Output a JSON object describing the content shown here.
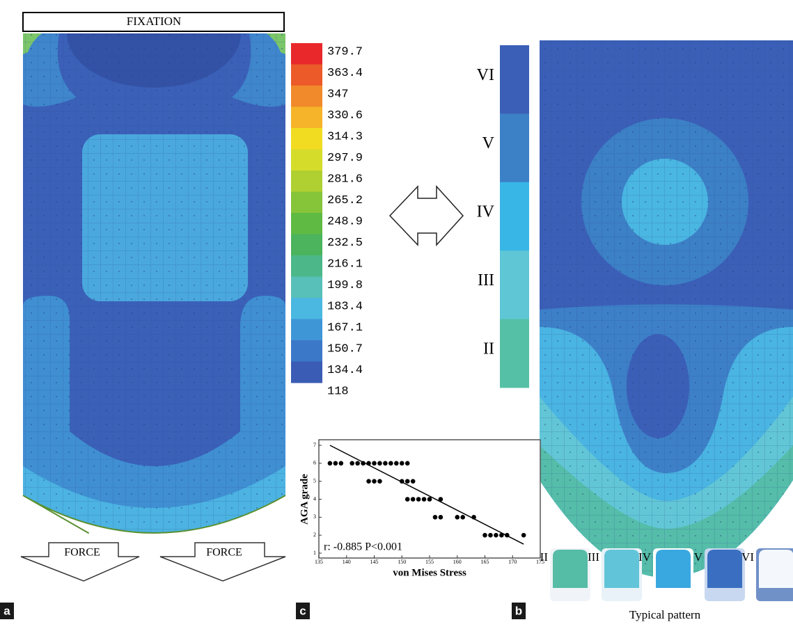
{
  "panel_a": {
    "header": "FIXATION",
    "forces": [
      "FORCE",
      "FORCE"
    ],
    "label": "a"
  },
  "legend_a": {
    "labels": [
      379.7,
      363.4,
      347,
      330.6,
      314.3,
      297.9,
      281.6,
      265.2,
      248.9,
      232.5,
      216.1,
      199.8,
      183.4,
      167.1,
      150.7,
      134.4,
      118
    ]
  },
  "legend_b": {
    "labels": [
      "VI",
      "V",
      "IV",
      "III",
      "II"
    ]
  },
  "panel_b": {
    "label": "b",
    "patterns": [
      "II",
      "III",
      "IV",
      "V",
      "VI"
    ],
    "caption": "Typical pattern"
  },
  "panel_c": {
    "label": "c"
  },
  "chart_data": {
    "type": "scatter",
    "xlabel": "von Mises Stress",
    "ylabel": "AGA grade",
    "annotation": "r: -0.885 P<0.001",
    "color": "#000000",
    "x": [
      137,
      138,
      139,
      141,
      142,
      143,
      144,
      145,
      146,
      147,
      148,
      149,
      150,
      151,
      144,
      145,
      146,
      150,
      151,
      152,
      151,
      152,
      153,
      154,
      155,
      157,
      156,
      157,
      160,
      161,
      163,
      165,
      166,
      167,
      168,
      169,
      172
    ],
    "y": [
      6,
      6,
      6,
      6,
      6,
      6,
      6,
      6,
      6,
      6,
      6,
      6,
      6,
      6,
      5,
      5,
      5,
      5,
      5,
      5,
      4,
      4,
      4,
      4,
      4,
      4,
      3,
      3,
      3,
      3,
      3,
      2,
      2,
      2,
      2,
      2,
      2
    ],
    "fit_line": {
      "x": [
        137,
        172
      ],
      "y": [
        7,
        1.5
      ]
    },
    "xlim": [
      135,
      175
    ],
    "ylim": [
      1,
      7
    ],
    "xticks": [
      135,
      140,
      145,
      150,
      155,
      160,
      165,
      170,
      175
    ],
    "yticks": [
      1,
      2,
      3,
      4,
      5,
      6,
      7
    ]
  }
}
